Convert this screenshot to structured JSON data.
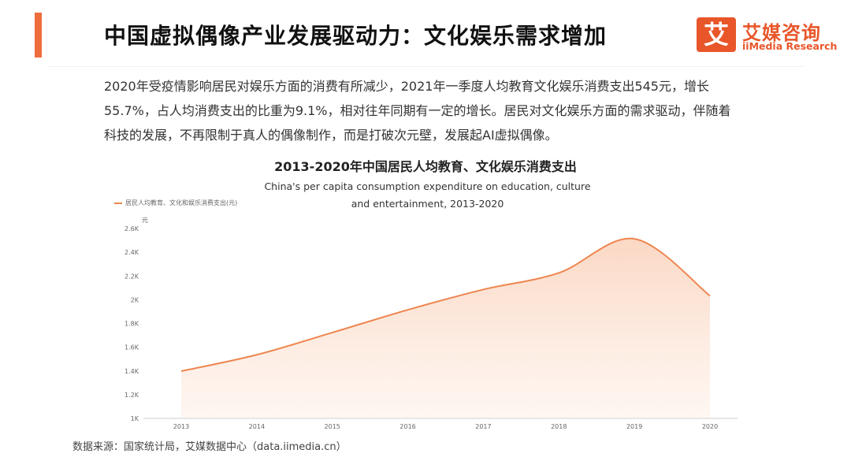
{
  "header": {
    "title": "中国虚拟偶像产业发展驱动力：文化娱乐需求增加",
    "accent_color": "#ee6d3d"
  },
  "brand": {
    "mark": "艾",
    "name_cn": "艾媒咨询",
    "name_en": "iiMedia Research",
    "color": "#e8562a"
  },
  "body": {
    "paragraph": "2020年受疫情影响居民对娱乐方面的消费有所减少，2021年一季度人均教育文化娱乐消费支出545元，增长55.7%，占人均消费支出的比重为9.1%，相对往年同期有一定的增长。居民对文化娱乐方面的需求驱动，伴随着科技的发展，不再限制于真人的偶像制作，而是打破次元壁，发展起AI虚拟偶像。"
  },
  "chart_data": {
    "type": "area",
    "title": "2013-2020年中国居民人均教育、文化娱乐消费支出",
    "subtitle": "China's per capita consumption expenditure on education, culture and entertainment, 2013-2020",
    "y_unit": "元",
    "x": [
      "2013",
      "2014",
      "2015",
      "2016",
      "2017",
      "2018",
      "2019",
      "2020"
    ],
    "series": [
      {
        "name": "居民人均教育、文化和娱乐消费支出(元)",
        "values": [
          1398,
          1536,
          1723,
          1915,
          2086,
          2226,
          2513,
          2032
        ]
      }
    ],
    "y_ticks": [
      "1K",
      "1.2K",
      "1.4K",
      "1.6K",
      "1.8K",
      "2K",
      "2.2K",
      "2.4K",
      "2.6K"
    ],
    "ylim": [
      1000,
      2600
    ],
    "line_color": "#ee8650",
    "legend_position": "top-left",
    "grid": false
  },
  "footer": {
    "source": "数据来源：国家统计局，艾媒数据中心（data.iimedia.cn）"
  }
}
